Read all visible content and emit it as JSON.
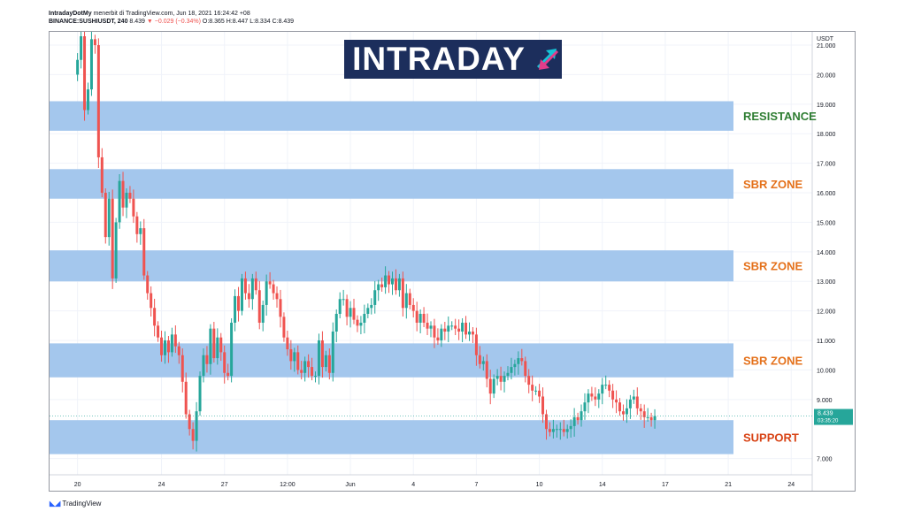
{
  "header": {
    "line1_author": "IntradayDotMy",
    "line1_rest": "menerbit di TradingView.com, Jun 18, 2021 16:24:42 +08",
    "symbol": "BINANCE:SUSHIUSDT, 240",
    "last": "8.439",
    "change": "▼ −0.029 (−0.34%)",
    "o": "O:8.365",
    "h": "H:8.447",
    "l": "L:8.334",
    "c": "C:8.439"
  },
  "logo": {
    "text": "INTRADAY"
  },
  "footer": {
    "brand": "TradingView"
  },
  "colors": {
    "up": "#26a69a",
    "down": "#ef5350",
    "zone": "#a4c7ed",
    "resistance_label": "#2e7d32",
    "sbr_label": "#e4711b",
    "support_label": "#d84315",
    "price_tag": "#26a69a",
    "logo_bg": "#1c2e5c"
  },
  "chart_data": {
    "type": "candlestick",
    "currency_label": "USDT",
    "y_ticks": [
      {
        "v": 7,
        "label": "7.000"
      },
      {
        "v": 9,
        "label": "9.000"
      },
      {
        "v": 10,
        "label": "10.000"
      },
      {
        "v": 11,
        "label": "11.000"
      },
      {
        "v": 12,
        "label": "12.000"
      },
      {
        "v": 13,
        "label": "13.000"
      },
      {
        "v": 14,
        "label": "14.000"
      },
      {
        "v": 15,
        "label": "15.000"
      },
      {
        "v": 16,
        "label": "16.000"
      },
      {
        "v": 17,
        "label": "17.000"
      },
      {
        "v": 18,
        "label": "18.000"
      },
      {
        "v": 19,
        "label": "19.000"
      },
      {
        "v": 20,
        "label": "20.000"
      },
      {
        "v": 21,
        "label": "21.000"
      }
    ],
    "x_ticks": [
      {
        "t": 1,
        "label": "20"
      },
      {
        "t": 25,
        "label": "24"
      },
      {
        "t": 43,
        "label": "27"
      },
      {
        "t": 61,
        "label": "12:00"
      },
      {
        "t": 79,
        "label": "Jun"
      },
      {
        "t": 97,
        "label": "4"
      },
      {
        "t": 115,
        "label": "7"
      },
      {
        "t": 133,
        "label": "10"
      },
      {
        "t": 151,
        "label": "14"
      },
      {
        "t": 169,
        "label": "17"
      },
      {
        "t": 187,
        "label": "21"
      },
      {
        "t": 205,
        "label": "24"
      }
    ],
    "x_range": [
      -7,
      211
    ],
    "y_range": [
      6.45,
      21.45
    ],
    "zones": [
      {
        "label": "RESISTANCE",
        "low": 18.1,
        "high": 19.1,
        "kind": "resistance"
      },
      {
        "label": "SBR ZONE",
        "low": 15.8,
        "high": 16.8,
        "kind": "sbr"
      },
      {
        "label": "SBR ZONE",
        "low": 13.0,
        "high": 14.05,
        "kind": "sbr"
      },
      {
        "label": "SBR ZONE",
        "low": 9.75,
        "high": 10.9,
        "kind": "sbr"
      },
      {
        "label": "SUPPORT",
        "low": 7.15,
        "high": 8.3,
        "kind": "support"
      }
    ],
    "current_price": {
      "value": 8.439,
      "label": "8.439",
      "countdown": "03:35:20"
    },
    "closes": [
      20.0,
      20.5,
      21.3,
      18.8,
      19.5,
      21.2,
      21.0,
      17.2,
      16.0,
      14.5,
      15.8,
      13.1,
      15.0,
      16.4,
      15.5,
      16.0,
      15.8,
      15.2,
      14.6,
      14.8,
      13.2,
      12.6,
      12.1,
      11.5,
      11.1,
      10.5,
      11.0,
      10.6,
      11.2,
      10.8,
      10.5,
      9.6,
      8.5,
      8.0,
      7.6,
      8.6,
      9.8,
      10.5,
      10.2,
      11.4,
      10.4,
      11.1,
      10.6,
      9.9,
      9.8,
      11.6,
      12.5,
      12.0,
      13.1,
      12.6,
      12.4,
      13.1,
      12.7,
      11.6,
      12.2,
      13.0,
      12.9,
      12.6,
      12.4,
      11.8,
      11.1,
      10.7,
      10.3,
      10.6,
      10.0,
      9.9,
      10.3,
      10.1,
      9.8,
      9.8,
      11.0,
      10.1,
      10.5,
      9.9,
      11.3,
      11.9,
      12.4,
      12.4,
      11.8,
      12.1,
      11.7,
      11.5,
      11.6,
      11.9,
      12.1,
      12.2,
      12.7,
      12.9,
      12.8,
      13.2,
      12.9,
      13.1,
      12.7,
      13.1,
      12.1,
      12.6,
      12.2,
      12.0,
      11.6,
      11.9,
      11.6,
      11.4,
      11.5,
      11.1,
      11.0,
      11.4,
      11.3,
      11.5,
      11.5,
      11.4,
      11.3,
      11.6,
      11.2,
      11.3,
      11.2,
      10.5,
      10.2,
      10.3,
      9.7,
      9.2,
      9.7,
      9.8,
      9.6,
      9.8,
      9.9,
      10.1,
      10.2,
      10.4,
      10.3,
      9.8,
      9.5,
      9.3,
      9.3,
      9.1,
      8.5,
      8.0,
      7.9,
      8.0,
      8.0,
      8.0,
      7.9,
      8.0,
      8.1,
      8.4,
      8.3,
      8.6,
      8.9,
      9.2,
      9.1,
      9.0,
      9.2,
      9.5,
      9.5,
      9.3,
      9.0,
      8.9,
      8.6,
      8.5,
      8.7,
      9.0,
      9.1,
      8.7,
      8.6,
      8.4,
      8.4,
      8.3,
      8.439
    ]
  }
}
